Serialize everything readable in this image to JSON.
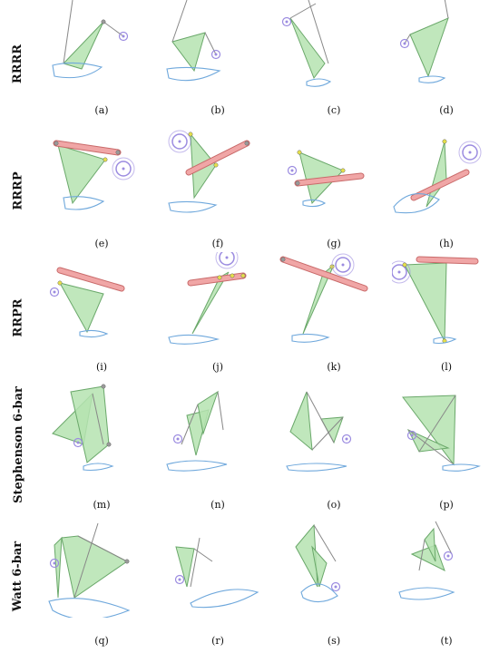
{
  "rows": [
    {
      "label": "RRRR",
      "panels": [
        {
          "caption": "(a)",
          "kind": "rrrr",
          "variant": 0
        },
        {
          "caption": "(b)",
          "kind": "rrrr",
          "variant": 1
        },
        {
          "caption": "(c)",
          "kind": "rrrr",
          "variant": 2
        },
        {
          "caption": "(d)",
          "kind": "rrrr",
          "variant": 3
        }
      ]
    },
    {
      "label": "RRRP",
      "panels": [
        {
          "caption": "(e)",
          "kind": "rrrp",
          "variant": 0
        },
        {
          "caption": "(f)",
          "kind": "rrrp",
          "variant": 1
        },
        {
          "caption": "(g)",
          "kind": "rrrp",
          "variant": 2
        },
        {
          "caption": "(h)",
          "kind": "rrrp",
          "variant": 3
        }
      ]
    },
    {
      "label": "RRPR",
      "panels": [
        {
          "caption": "(i)",
          "kind": "rrpr",
          "variant": 0
        },
        {
          "caption": "(j)",
          "kind": "rrpr",
          "variant": 1
        },
        {
          "caption": "(k)",
          "kind": "rrpr",
          "variant": 2
        },
        {
          "caption": "(l)",
          "kind": "rrpr",
          "variant": 3
        }
      ]
    },
    {
      "label": "Stephenson 6-bar",
      "panels": [
        {
          "caption": "(m)",
          "kind": "steph",
          "variant": 0
        },
        {
          "caption": "(n)",
          "kind": "steph",
          "variant": 1
        },
        {
          "caption": "(o)",
          "kind": "steph",
          "variant": 2
        },
        {
          "caption": "(p)",
          "kind": "steph",
          "variant": 3
        }
      ]
    },
    {
      "label": "Watt 6-bar",
      "panels": [
        {
          "caption": "(q)",
          "kind": "watt",
          "variant": 0
        },
        {
          "caption": "(r)",
          "kind": "watt",
          "variant": 1
        },
        {
          "caption": "(s)",
          "kind": "watt",
          "variant": 2
        },
        {
          "caption": "(t)",
          "kind": "watt",
          "variant": 3
        }
      ]
    }
  ],
  "colors": {
    "link_fill": "#b5e3b0",
    "link_stroke": "#6aa86a",
    "bar": "#888888",
    "curve": "#6fa8dc",
    "motor": "#9b8be0",
    "slider_fill": "#f0a6a6",
    "slider_stroke": "#c96a6a",
    "joint": "#9a9a9a",
    "joint_yellow": "#e6e04a"
  }
}
